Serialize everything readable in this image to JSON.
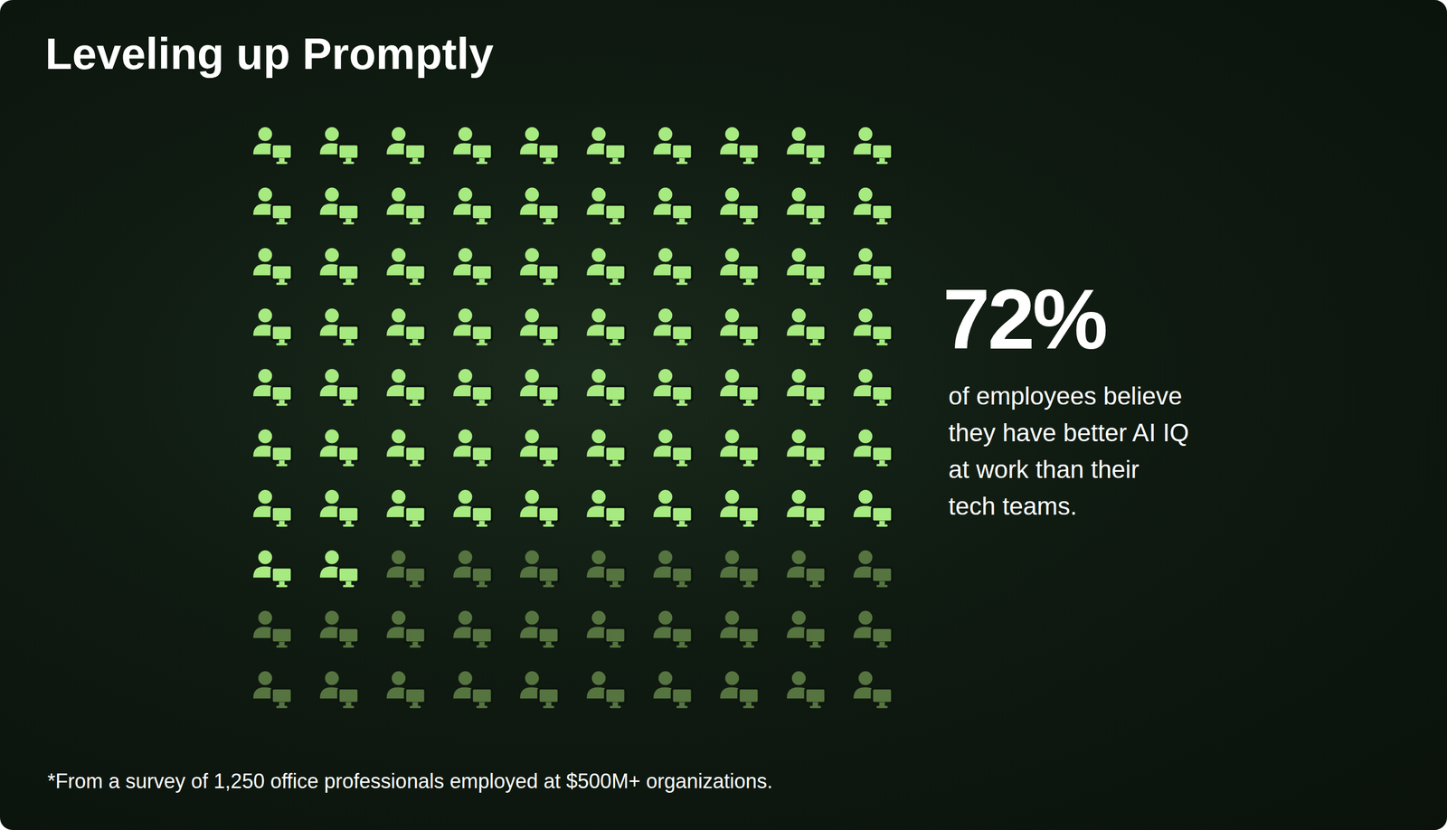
{
  "chart_data": {
    "type": "waffle",
    "title": "Leveling up Promptly",
    "values": [
      72
    ],
    "value_labels": [
      "72%"
    ],
    "total": 100,
    "description": "of employees believe they have better AI IQ at work than their tech teams.",
    "footnote": "*From a survey of 1,250 office professionals employed at $500M+ organizations.",
    "colors": [
      "#a6ea80",
      "#56743f"
    ]
  }
}
